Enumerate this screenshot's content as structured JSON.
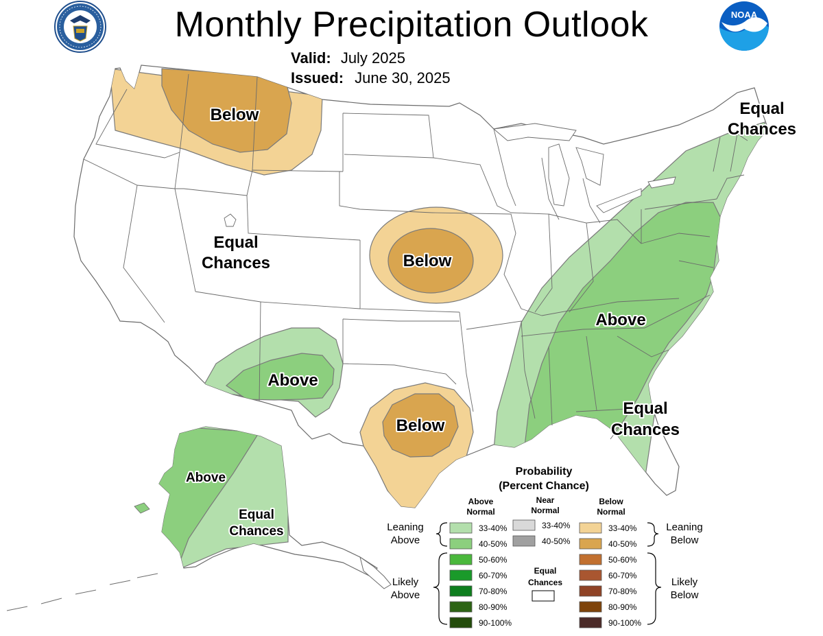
{
  "header": {
    "title": "Monthly Precipitation Outlook",
    "valid_label": "Valid:",
    "valid_value": "July 2025",
    "issued_label": "Issued:",
    "issued_value": "June 30, 2025"
  },
  "logos": {
    "left": "doc-seal-icon",
    "right": "noaa-logo-icon",
    "left_ring_text": "DEPARTMENT OF COMMERCE · UNITED STATES OF AMERICA",
    "right_text": "NOAA"
  },
  "regions": [
    {
      "id": "northwest",
      "category": "Below",
      "label": "Below"
    },
    {
      "id": "central-plains",
      "category": "Below",
      "label": "Below"
    },
    {
      "id": "texas",
      "category": "Below",
      "label": "Below"
    },
    {
      "id": "southwest",
      "category": "Above",
      "label": "Above"
    },
    {
      "id": "east",
      "category": "Above",
      "label": "Above"
    },
    {
      "id": "alaska",
      "category": "Above",
      "label": "Above"
    }
  ],
  "ec_labels": {
    "west_1": "Equal",
    "west_2": "Chances",
    "northeast_1": "Equal",
    "northeast_2": "Chances",
    "southeast_1": "Equal",
    "southeast_2": "Chances",
    "alaska_1": "Equal",
    "alaska_2": "Chances"
  },
  "legend": {
    "title_1": "Probability",
    "title_2": "(Percent Chance)",
    "above_head_1": "Above",
    "above_head_2": "Normal",
    "near_head_1": "Near",
    "near_head_2": "Normal",
    "below_head_1": "Below",
    "below_head_2": "Normal",
    "leaning_above_1": "Leaning",
    "leaning_above_2": "Above",
    "likely_above_1": "Likely",
    "likely_above_2": "Above",
    "leaning_below_1": "Leaning",
    "leaning_below_2": "Below",
    "likely_below_1": "Likely",
    "likely_below_2": "Below",
    "ec_1": "Equal",
    "ec_2": "Chances",
    "above": [
      {
        "range": "33-40%",
        "color": "#b3dfac"
      },
      {
        "range": "40-50%",
        "color": "#8ccf7e"
      },
      {
        "range": "50-60%",
        "color": "#4ab83c"
      },
      {
        "range": "60-70%",
        "color": "#1a9a2a"
      },
      {
        "range": "70-80%",
        "color": "#0e7e1e"
      },
      {
        "range": "80-90%",
        "color": "#2d6414"
      },
      {
        "range": "90-100%",
        "color": "#234b0b"
      }
    ],
    "near": [
      {
        "range": "33-40%",
        "color": "#d9d9d9"
      },
      {
        "range": "40-50%",
        "color": "#a0a0a0"
      }
    ],
    "below": [
      {
        "range": "33-40%",
        "color": "#f3d395"
      },
      {
        "range": "40-50%",
        "color": "#d9a54f"
      },
      {
        "range": "50-60%",
        "color": "#c2702f"
      },
      {
        "range": "60-70%",
        "color": "#a95630"
      },
      {
        "range": "70-80%",
        "color": "#8f4326"
      },
      {
        "range": "80-90%",
        "color": "#7e430a"
      },
      {
        "range": "90-100%",
        "color": "#4b2a28"
      }
    ]
  },
  "colors": {
    "above_33_40": "#b3dfac",
    "above_40_50": "#8ccf7e",
    "below_33_40": "#f3d395",
    "below_40_50": "#d9a54f",
    "boundary": "#6b6b6b",
    "contour": "#7a7a7a"
  }
}
